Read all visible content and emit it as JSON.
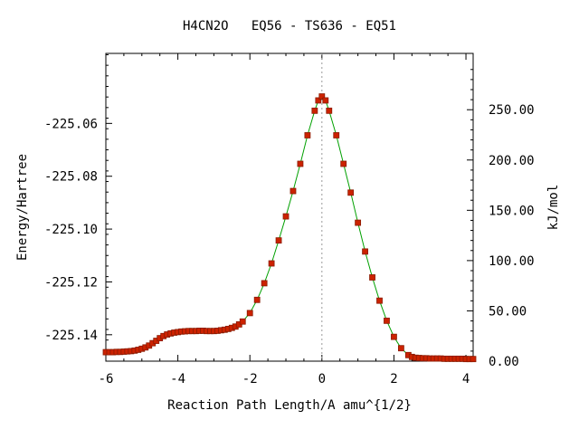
{
  "chart_data": {
    "type": "scatter",
    "title": "H4CN2O   EQ56 - TS636 - EQ51",
    "xlabel": "Reaction Path Length/A amu^{1/2}",
    "ylabel": "Energy/Hartree",
    "y2label": "kJ/mol",
    "xlim": [
      -6,
      4.2
    ],
    "ylim": [
      -225.15,
      -225.0335
    ],
    "y2lim": [
      0,
      306.0
    ],
    "x_ticks": [
      -6,
      -4,
      -2,
      0,
      2,
      4
    ],
    "x_tick_labels": [
      "-6",
      "-4",
      "-2",
      "0",
      "2",
      "4"
    ],
    "y_ticks": [
      -225.06,
      -225.08,
      -225.1,
      -225.12,
      -225.14
    ],
    "y_tick_labels": [
      "-225.06",
      "-225.08",
      "-225.10",
      "-225.12",
      "-225.14"
    ],
    "y2_ticks": [
      0,
      50,
      100,
      150,
      200,
      250
    ],
    "y2_tick_labels": [
      "0.00",
      "50.00",
      "100.00",
      "150.00",
      "200.00",
      "250.00"
    ],
    "ts_x": 0,
    "grid": false,
    "colors": {
      "line": "#00a000",
      "marker": "#cc2200",
      "marker_edge": "#8a1a00",
      "ts_line": "#999999"
    },
    "series": [
      {
        "x": [
          -6.0,
          -5.9,
          -5.8,
          -5.7,
          -5.6,
          -5.5,
          -5.4,
          -5.3,
          -5.2,
          -5.1,
          -5.0,
          -4.9,
          -4.8,
          -4.7,
          -4.6,
          -4.5,
          -4.4,
          -4.3,
          -4.2,
          -4.1,
          -4.0,
          -3.9,
          -3.8,
          -3.7,
          -3.6,
          -3.5,
          -3.4,
          -3.3,
          -3.2,
          -3.1,
          -3.0,
          -2.9,
          -2.8,
          -2.7,
          -2.6,
          -2.5,
          -2.4,
          -2.3,
          -2.2,
          -2.0,
          -1.8,
          -1.6,
          -1.4,
          -1.2,
          -1.0,
          -0.8,
          -0.6,
          -0.4,
          -0.2,
          -0.1,
          0.0,
          0.1,
          0.2,
          0.4,
          0.6,
          0.8,
          1.0,
          1.2,
          1.4,
          1.6,
          1.8,
          2.0,
          2.2,
          2.4,
          2.5,
          2.6,
          2.7,
          2.8,
          2.9,
          3.0,
          3.1,
          3.2,
          3.3,
          3.4,
          3.5,
          3.6,
          3.7,
          3.8,
          3.9,
          4.0,
          4.1,
          4.2
        ],
        "y": [
          -225.1466,
          -225.1466,
          -225.1466,
          -225.1465,
          -225.1465,
          -225.1464,
          -225.1463,
          -225.1462,
          -225.146,
          -225.1457,
          -225.1453,
          -225.1448,
          -225.1441,
          -225.1432,
          -225.1423,
          -225.1413,
          -225.1405,
          -225.1399,
          -225.1395,
          -225.1392,
          -225.139,
          -225.1388,
          -225.1387,
          -225.1386,
          -225.1386,
          -225.1386,
          -225.1385,
          -225.1385,
          -225.1386,
          -225.1386,
          -225.1386,
          -225.1385,
          -225.1383,
          -225.1381,
          -225.1378,
          -225.1374,
          -225.1369,
          -225.1361,
          -225.135,
          -225.1318,
          -225.1268,
          -225.1205,
          -225.113,
          -225.1043,
          -225.0952,
          -225.0856,
          -225.0753,
          -225.0645,
          -225.0552,
          -225.0513,
          -225.0498,
          -225.0513,
          -225.0552,
          -225.0645,
          -225.0753,
          -225.0862,
          -225.0976,
          -225.1085,
          -225.1183,
          -225.1271,
          -225.1347,
          -225.1408,
          -225.1451,
          -225.1477,
          -225.1484,
          -225.1487,
          -225.1488,
          -225.1489,
          -225.1489,
          -225.149,
          -225.149,
          -225.149,
          -225.149,
          -225.1491,
          -225.1491,
          -225.1491,
          -225.1491,
          -225.1491,
          -225.1491,
          -225.1492,
          -225.1492,
          -225.1492
        ]
      }
    ]
  }
}
